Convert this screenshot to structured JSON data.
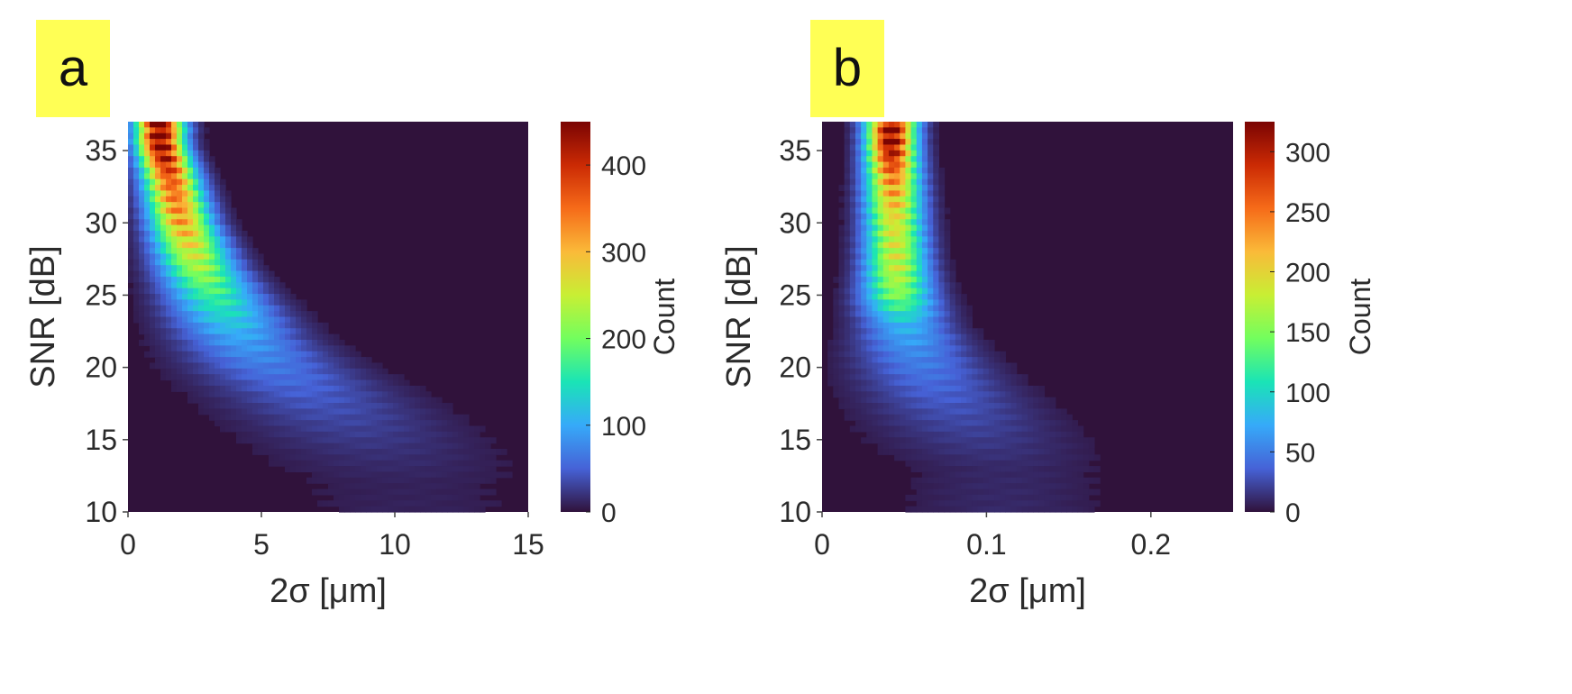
{
  "panels": [
    {
      "label": "a"
    },
    {
      "label": "b"
    }
  ],
  "colors": {
    "label_background": "#ffff55",
    "colormap": [
      "#30123b",
      "#4662d7",
      "#36aaf9",
      "#1ae4b6",
      "#72fe5e",
      "#c8ef34",
      "#faba39",
      "#f66b19",
      "#cb2a04",
      "#7a0403"
    ]
  },
  "chart_data": [
    {
      "type": "heatmap",
      "panel": "a",
      "xlabel": "2σ [μm]",
      "ylabel": "SNR [dB]",
      "colorbar_label": "Count",
      "xlim": [
        0,
        15
      ],
      "ylim": [
        10,
        37
      ],
      "clim": [
        0,
        450
      ],
      "xticks": [
        0,
        5,
        10,
        15
      ],
      "xtick_labels": [
        "0",
        "5",
        "10",
        "15"
      ],
      "yticks": [
        10,
        15,
        20,
        25,
        30,
        35
      ],
      "ytick_labels": [
        "10",
        "15",
        "20",
        "25",
        "30",
        "35"
      ],
      "cticks": [
        0,
        100,
        200,
        300,
        400
      ],
      "ctick_labels": [
        "0",
        "100",
        "200",
        "300",
        "400"
      ],
      "ridge": [
        {
          "snr": 35.5,
          "sigma": 1.2,
          "width": 0.6,
          "count": 450
        },
        {
          "snr": 33,
          "sigma": 1.6,
          "width": 0.7,
          "count": 360
        },
        {
          "snr": 30,
          "sigma": 2.0,
          "width": 0.8,
          "count": 310
        },
        {
          "snr": 27,
          "sigma": 2.6,
          "width": 1.0,
          "count": 230
        },
        {
          "snr": 25,
          "sigma": 3.2,
          "width": 1.2,
          "count": 170
        },
        {
          "snr": 22,
          "sigma": 4.2,
          "width": 1.6,
          "count": 95
        },
        {
          "snr": 20,
          "sigma": 5.3,
          "width": 2.0,
          "count": 65
        },
        {
          "snr": 18,
          "sigma": 6.8,
          "width": 2.4,
          "count": 45
        },
        {
          "snr": 16,
          "sigma": 8.2,
          "width": 2.8,
          "count": 30
        },
        {
          "snr": 14,
          "sigma": 9.5,
          "width": 3.2,
          "count": 18
        },
        {
          "snr": 12,
          "sigma": 10.5,
          "width": 3.6,
          "count": 10
        }
      ]
    },
    {
      "type": "heatmap",
      "panel": "b",
      "xlabel": "2σ [μm]",
      "ylabel": "SNR [dB]",
      "colorbar_label": "Count",
      "xlim": [
        0,
        0.25
      ],
      "ylim": [
        10,
        37
      ],
      "clim": [
        0,
        325
      ],
      "xticks": [
        0,
        0.1,
        0.2
      ],
      "xtick_labels": [
        "0",
        "0.1",
        "0.2"
      ],
      "yticks": [
        10,
        15,
        20,
        25,
        30,
        35
      ],
      "ytick_labels": [
        "10",
        "15",
        "20",
        "25",
        "30",
        "35"
      ],
      "cticks": [
        0,
        50,
        100,
        150,
        200,
        250,
        300
      ],
      "ctick_labels": [
        "0",
        "50",
        "100",
        "150",
        "200",
        "250",
        "300"
      ],
      "ridge": [
        {
          "snr": 35.5,
          "sigma": 0.042,
          "width": 0.01,
          "count": 320
        },
        {
          "snr": 33,
          "sigma": 0.043,
          "width": 0.011,
          "count": 240
        },
        {
          "snr": 30,
          "sigma": 0.044,
          "width": 0.012,
          "count": 190
        },
        {
          "snr": 27,
          "sigma": 0.045,
          "width": 0.013,
          "count": 180
        },
        {
          "snr": 25,
          "sigma": 0.046,
          "width": 0.015,
          "count": 150
        },
        {
          "snr": 23,
          "sigma": 0.05,
          "width": 0.018,
          "count": 80
        },
        {
          "snr": 21,
          "sigma": 0.056,
          "width": 0.024,
          "count": 55
        },
        {
          "snr": 19,
          "sigma": 0.066,
          "width": 0.03,
          "count": 40
        },
        {
          "snr": 17,
          "sigma": 0.08,
          "width": 0.036,
          "count": 28
        },
        {
          "snr": 15,
          "sigma": 0.095,
          "width": 0.042,
          "count": 18
        },
        {
          "snr": 13,
          "sigma": 0.11,
          "width": 0.046,
          "count": 10
        }
      ]
    }
  ]
}
